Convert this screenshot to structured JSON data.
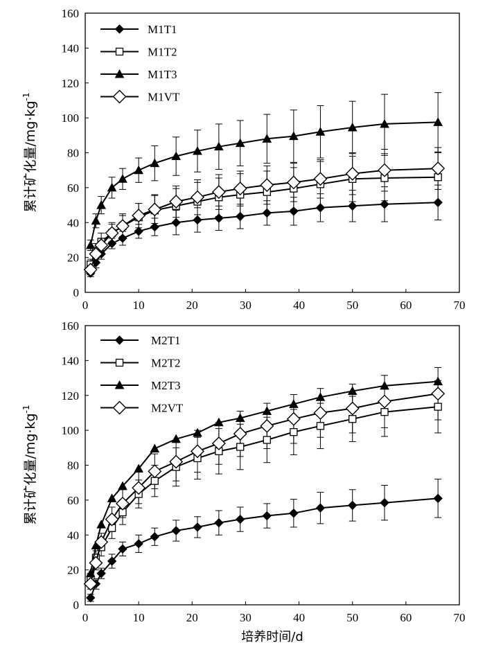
{
  "chart_data": [
    {
      "type": "line",
      "ylabel": "累计矿化量/mg·kg",
      "ylabel_sup": "-1",
      "xlabel": "",
      "xlim": [
        0,
        70
      ],
      "ylim": [
        0,
        160
      ],
      "xticks": [
        0,
        10,
        20,
        30,
        40,
        50,
        60,
        70
      ],
      "yticks": [
        0,
        20,
        40,
        60,
        80,
        100,
        120,
        140,
        160
      ],
      "legend_position": "top-left",
      "grid": false,
      "x": [
        1,
        2,
        3,
        5,
        7,
        10,
        13,
        17,
        21,
        25,
        29,
        34,
        39,
        44,
        50,
        56,
        66
      ],
      "series": [
        {
          "name": "M1T1",
          "marker": "diamond-filled",
          "values": [
            11,
            17,
            22,
            28,
            31,
            35,
            37.5,
            40,
            41.5,
            42.5,
            43.5,
            45.5,
            46.5,
            48.5,
            49.5,
            50.5,
            51.5
          ],
          "errors": [
            2,
            3,
            3,
            3,
            4,
            4,
            5,
            7,
            7,
            7,
            7,
            7,
            8,
            8,
            9,
            10,
            10
          ]
        },
        {
          "name": "M1T2",
          "marker": "square-open",
          "values": [
            16,
            24,
            29,
            34,
            38,
            43,
            47,
            49.5,
            52,
            54.5,
            56,
            57.5,
            59.5,
            62,
            65,
            65.5,
            66
          ],
          "errors": [
            3,
            4,
            5,
            6,
            7,
            8,
            9,
            10,
            11,
            11,
            12,
            12,
            12,
            13,
            13,
            13,
            14
          ]
        },
        {
          "name": "M1T3",
          "marker": "triangle-filled",
          "values": [
            27,
            41,
            50,
            60,
            65,
            70,
            74,
            78,
            81,
            83.5,
            85.5,
            88,
            89.5,
            92,
            94.5,
            96.5,
            97.5
          ],
          "errors": [
            3,
            4,
            5,
            6,
            6,
            7,
            10,
            11,
            12,
            13,
            13,
            14,
            15,
            15,
            15,
            17,
            17
          ]
        },
        {
          "name": "M1VT",
          "marker": "diamond-open",
          "values": [
            13,
            22,
            27,
            34,
            38,
            44,
            47.5,
            52,
            54.5,
            57.5,
            59.5,
            61.5,
            63,
            65,
            68,
            70,
            71
          ],
          "errors": [
            3,
            4,
            4,
            5,
            6,
            7,
            8,
            9,
            10,
            10,
            10,
            11,
            11,
            11,
            12,
            12,
            12
          ]
        }
      ]
    },
    {
      "type": "line",
      "ylabel": "累计矿化量/mg·kg",
      "ylabel_sup": "-1",
      "xlabel": "培养时间/d",
      "xlim": [
        0,
        70
      ],
      "ylim": [
        0,
        160
      ],
      "xticks": [
        0,
        10,
        20,
        30,
        40,
        50,
        60,
        70
      ],
      "yticks": [
        0,
        20,
        40,
        60,
        80,
        100,
        120,
        140,
        160
      ],
      "legend_position": "top-left",
      "grid": false,
      "x": [
        1,
        2,
        3,
        5,
        7,
        10,
        13,
        17,
        21,
        25,
        29,
        34,
        39,
        44,
        50,
        56,
        66
      ],
      "series": [
        {
          "name": "M2T1",
          "marker": "diamond-filled",
          "values": [
            4,
            12,
            18,
            25,
            32,
            35,
            39,
            42.5,
            44.5,
            47,
            49,
            51,
            52.5,
            55.5,
            57,
            58.5,
            61
          ],
          "errors": [
            2,
            3,
            3,
            4,
            4,
            5,
            5,
            6,
            6,
            7,
            7,
            7,
            8,
            9,
            9,
            10,
            11
          ]
        },
        {
          "name": "M2T2",
          "marker": "square-open",
          "values": [
            15,
            27,
            33,
            44,
            53,
            63.5,
            71,
            79,
            84,
            88,
            90.5,
            94.5,
            99,
            102.5,
            106.5,
            110.5,
            113.5
          ],
          "errors": [
            3,
            4,
            5,
            6,
            7,
            8,
            9,
            11,
            12,
            13,
            13,
            13,
            13,
            13,
            13,
            14,
            15
          ]
        },
        {
          "name": "M2T3",
          "marker": "triangle-filled",
          "values": [
            18,
            34,
            46,
            61,
            68,
            78,
            89.5,
            95,
            98.5,
            104.5,
            107,
            111,
            115,
            119,
            122.5,
            125.5,
            128
          ]
        },
        {
          "name": "M2VT",
          "marker": "diamond-open",
          "values": [
            12,
            24,
            36,
            49,
            58,
            67,
            76.5,
            82,
            88,
            92.5,
            98,
            102.5,
            106.5,
            110,
            112.5,
            116.5,
            121
          ],
          "errors": [
            3,
            4,
            5,
            7,
            8,
            9,
            10,
            11,
            12,
            12,
            13,
            13,
            14,
            14,
            14,
            15,
            15
          ]
        }
      ]
    }
  ]
}
